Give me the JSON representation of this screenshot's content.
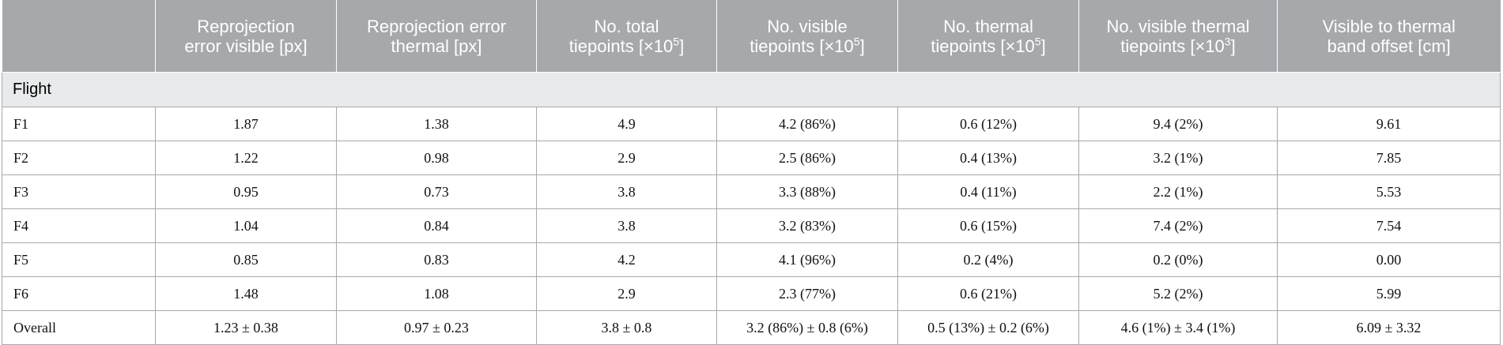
{
  "headers": [
    {
      "lines": [
        ""
      ]
    },
    {
      "lines": [
        "Reprojection",
        "error visible [px]"
      ]
    },
    {
      "lines": [
        "Reprojection error",
        "thermal [px]"
      ]
    },
    {
      "lines": [
        "No. total",
        "tiepoints [×10^5]"
      ]
    },
    {
      "lines": [
        "No. visible",
        "tiepoints [×10^5]"
      ]
    },
    {
      "lines": [
        "No. thermal",
        "tiepoints [×10^5]"
      ]
    },
    {
      "lines": [
        "No. visible thermal",
        "tiepoints [×10^3]"
      ]
    },
    {
      "lines": [
        "Visible to thermal",
        "band offset [cm]"
      ]
    }
  ],
  "header_display": {
    "h1": {
      "l1": "Reprojection",
      "l2": "error visible [px]"
    },
    "h2": {
      "l1": "Reprojection error",
      "l2": "thermal [px]"
    },
    "h3": {
      "l1": "No. total",
      "l2a": "tiepoints [×10",
      "exp": "5",
      "l2b": "]"
    },
    "h4": {
      "l1": "No. visible",
      "l2a": "tiepoints [×10",
      "exp": "5",
      "l2b": "]"
    },
    "h5": {
      "l1": "No. thermal",
      "l2a": "tiepoints [×10",
      "exp": "5",
      "l2b": "]"
    },
    "h6": {
      "l1": "No. visible thermal",
      "l2a": "tiepoints [×10",
      "exp": "3",
      "l2b": "]"
    },
    "h7": {
      "l1": "Visible to thermal",
      "l2": "band offset [cm]"
    }
  },
  "section_label": "Flight",
  "rows": [
    [
      "F1",
      "1.87",
      "1.38",
      "4.9",
      "4.2 (86%)",
      "0.6 (12%)",
      "9.4 (2%)",
      "9.61"
    ],
    [
      "F2",
      "1.22",
      "0.98",
      "2.9",
      "2.5 (86%)",
      "0.4 (13%)",
      "3.2 (1%)",
      "7.85"
    ],
    [
      "F3",
      "0.95",
      "0.73",
      "3.8",
      "3.3 (88%)",
      "0.4 (11%)",
      "2.2 (1%)",
      "5.53"
    ],
    [
      "F4",
      "1.04",
      "0.84",
      "3.8",
      "3.2 (83%)",
      "0.6 (15%)",
      "7.4 (2%)",
      "7.54"
    ],
    [
      "F5",
      "0.85",
      "0.83",
      "4.2",
      "4.1 (96%)",
      "0.2 (4%)",
      "0.2 (0%)",
      "0.00"
    ],
    [
      "F6",
      "1.48",
      "1.08",
      "2.9",
      "2.3 (77%)",
      "0.6 (21%)",
      "5.2 (2%)",
      "5.99"
    ],
    [
      "Overall",
      "1.23 ± 0.38",
      "0.97 ± 0.23",
      "3.8 ± 0.8",
      "3.2 (86%) ± 0.8 (6%)",
      "0.5 (13%) ± 0.2 (6%)",
      "4.6 (1%) ± 3.4 (1%)",
      "6.09 ± 3.32"
    ]
  ],
  "colors": {
    "header_bg": "#a6a9ac",
    "section_bg": "#e9eaeb",
    "grid": "#a6a9ac"
  }
}
